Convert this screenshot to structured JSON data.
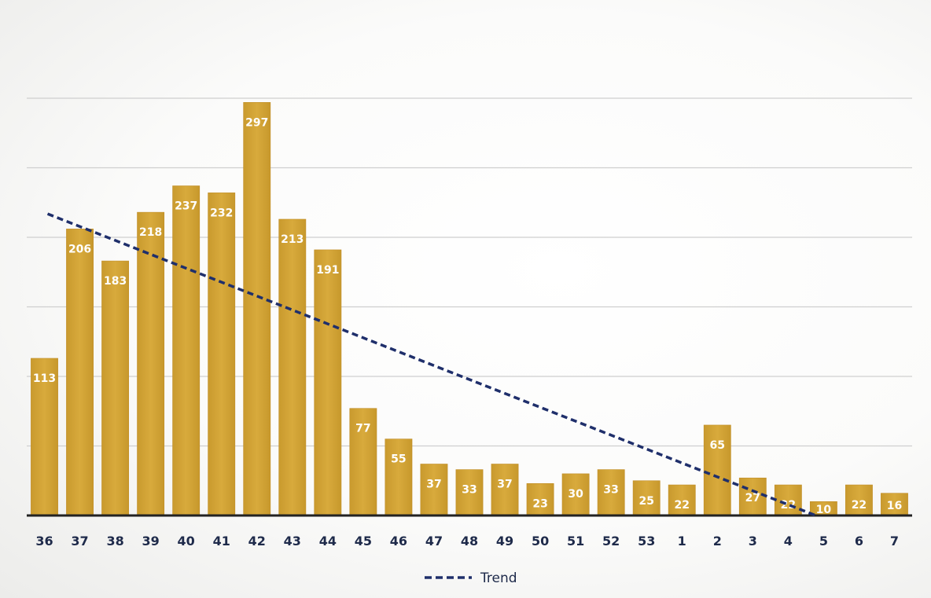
{
  "chart_data": {
    "type": "bar",
    "title": "",
    "xlabel": "",
    "ylabel": "",
    "categories": [
      "36",
      "37",
      "38",
      "39",
      "40",
      "41",
      "42",
      "43",
      "44",
      "45",
      "46",
      "47",
      "48",
      "49",
      "50",
      "51",
      "52",
      "53",
      "1",
      "2",
      "3",
      "4",
      "5",
      "6",
      "7"
    ],
    "series": [
      {
        "values": [
          113,
          206,
          183,
          218,
          237,
          232,
          297,
          213,
          191,
          77,
          55,
          37,
          33,
          37,
          23,
          30,
          33,
          25,
          22,
          65,
          27,
          22,
          10,
          22,
          16
        ]
      }
    ],
    "trend": {
      "name": "Trend",
      "type": "linear",
      "start": {
        "category": "36",
        "value": 218
      },
      "end": {
        "category": "5",
        "value": 0
      }
    },
    "ylim": [
      0,
      300
    ],
    "ytick_step": 50,
    "y_tick_labels_shown": false,
    "grid": true,
    "legend": "bottom-center",
    "colors": {
      "bar": "#d6a634",
      "bar_dark": "#c18d26",
      "trend": "#1f2f6b",
      "grid": "#cfcfcf",
      "axis": "#222222",
      "tick_text": "#1e2a4a"
    }
  }
}
